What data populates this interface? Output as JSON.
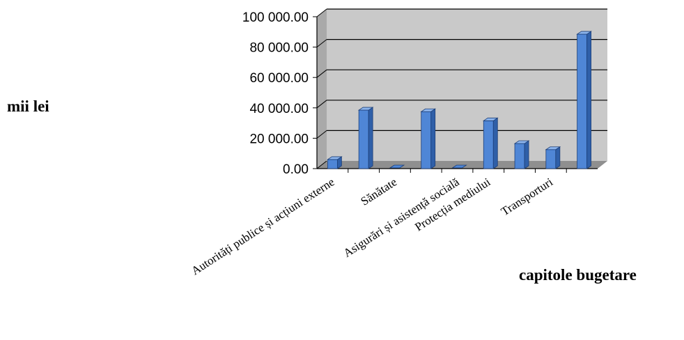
{
  "chart_data": {
    "type": "bar",
    "ylabel": "mii lei",
    "xlabel": "capitole bugetare",
    "ylim": [
      0,
      100000
    ],
    "ytick_labels": [
      "0.00",
      "20 000.00",
      "40 000.00",
      "60 000.00",
      "80 000.00",
      "100 000.00"
    ],
    "categories": [
      "Autorități publice și acțiuni externe",
      "",
      "Sănătate",
      "",
      "Asigurări și asistență socială",
      "Protecția mediului",
      "",
      "Transporturi",
      ""
    ],
    "values": [
      6000,
      38500,
      0,
      37500,
      0,
      31500,
      16500,
      12500,
      88500
    ],
    "grid": true,
    "colors": {
      "bar_front": "#4f86d6",
      "bar_side": "#2f5fa8",
      "bar_top": "#8cb4ec",
      "plot_back": "#c9c9c9",
      "plot_floor": "#8f8f8f",
      "plot_wall": "#a9a9a9"
    }
  }
}
